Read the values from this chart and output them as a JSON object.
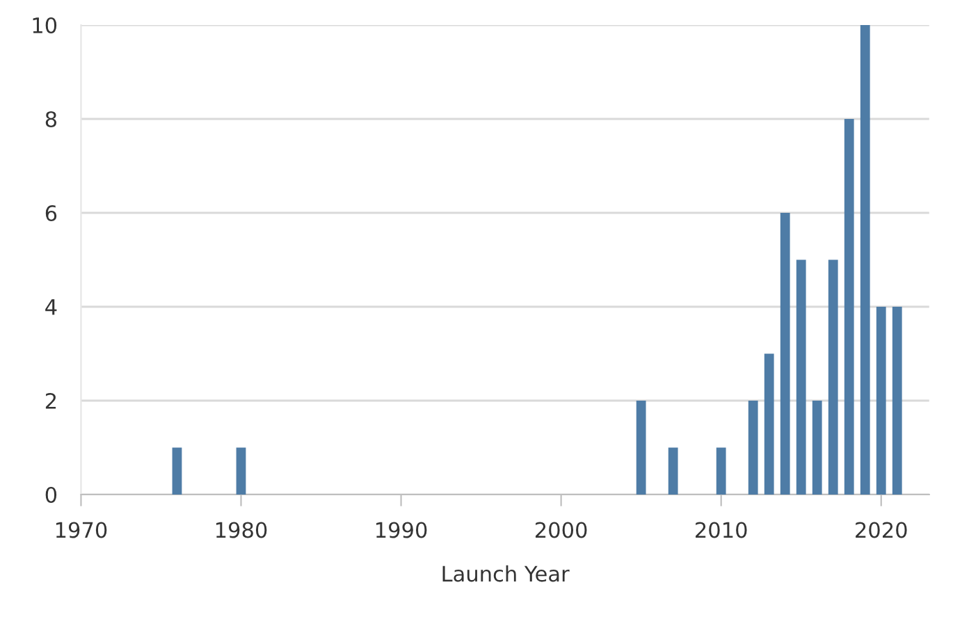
{
  "chart_data": {
    "type": "bar",
    "xlabel": "Launch Year",
    "x": [
      1976,
      1980,
      2005,
      2007,
      2010,
      2012,
      2013,
      2014,
      2015,
      2016,
      2017,
      2018,
      2019,
      2020,
      2021
    ],
    "values": [
      1,
      1,
      2,
      1,
      1,
      2,
      3,
      6,
      5,
      2,
      5,
      8,
      10,
      4,
      4
    ],
    "color": "#4e7ca6",
    "xlim": [
      1970,
      2023
    ],
    "xticks": [
      1970,
      1980,
      1990,
      2000,
      2010,
      2020
    ],
    "ylim": [
      0,
      10
    ],
    "yticks": [
      0,
      2,
      4,
      6,
      8,
      10
    ],
    "grid": "y"
  }
}
